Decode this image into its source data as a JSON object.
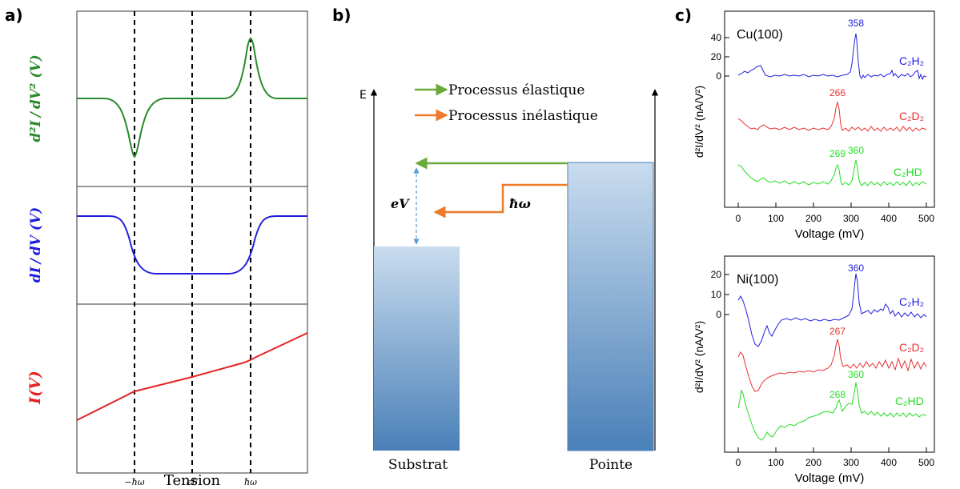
{
  "panel_a": {
    "label": "a)",
    "xlabel": "Tension",
    "ticks": [
      "−ħω",
      "ϵF",
      "ħω"
    ],
    "ylabel_top_num": "d²I",
    "ylabel_top_den": "dV²",
    "ylabel_top_suffix": "(V)",
    "ylabel_mid_num": "dI",
    "ylabel_mid_den": "dV",
    "ylabel_mid_suffix": "(V)",
    "ylabel_bot": "I(V)",
    "colors": {
      "d2I": "#2a8a2a",
      "dI": "#1e1edc",
      "I": "#e52222"
    }
  },
  "panel_b": {
    "label": "b)",
    "axis_label": "E",
    "legend": [
      "Processus élastique",
      "Processus inélastique"
    ],
    "eV": "eV",
    "hw": "ħω",
    "substrate": "Substrat",
    "tip": "Pointe",
    "colors": {
      "elastic": "#6aaa3a",
      "inelastic": "#ee7a2a"
    }
  },
  "panel_c": {
    "label": "c)",
    "plots": [
      {
        "material": "Cu(100)",
        "xlabel": "Voltage  (mV)",
        "ylabel": "d²I/dV²  (nA/V²)",
        "xticks": [
          "0",
          "100",
          "200",
          "300",
          "400",
          "500"
        ],
        "yticks": [
          "40",
          "20",
          "0"
        ],
        "series": [
          {
            "name": "C₂H₂",
            "color": "#2020e0",
            "peaks": [
              "358"
            ]
          },
          {
            "name": "C₂D₂",
            "color": "#e83030",
            "peaks": [
              "266"
            ]
          },
          {
            "name": "C₂HD",
            "color": "#22dd22",
            "peaks": [
              "269",
              "360"
            ]
          }
        ]
      },
      {
        "material": "Ni(100)",
        "xlabel": "Voltage  (mV)",
        "ylabel": "d²I/dV²  (nA/V²)",
        "xticks": [
          "0",
          "100",
          "200",
          "300",
          "400",
          "500"
        ],
        "yticks": [
          "20",
          "10",
          "0"
        ],
        "series": [
          {
            "name": "C₂H₂",
            "color": "#2020e0",
            "peaks": [
              "360"
            ]
          },
          {
            "name": "C₂D₂",
            "color": "#e83030",
            "peaks": [
              "267"
            ]
          },
          {
            "name": "C₂HD",
            "color": "#22dd22",
            "peaks": [
              "268",
              "360"
            ]
          }
        ]
      }
    ]
  }
}
